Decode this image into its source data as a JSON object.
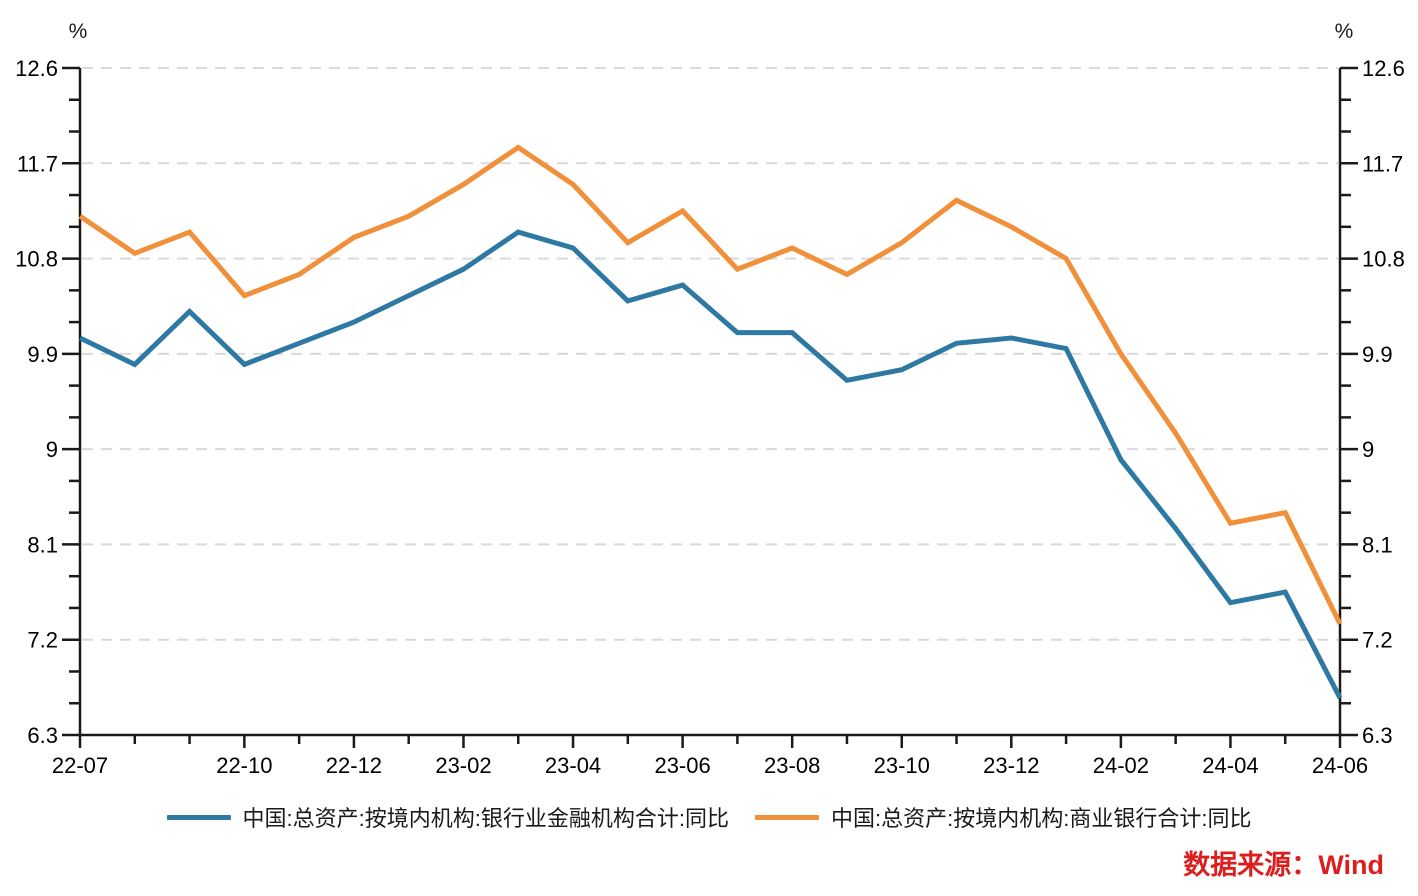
{
  "page": {
    "background": "#ffffff"
  },
  "chart_data": {
    "type": "line",
    "title": "",
    "y_axis_unit_left": "%",
    "y_axis_unit_right": "%",
    "ylim": [
      6.3,
      12.6
    ],
    "y_major_ticks": [
      6.3,
      7.2,
      8.1,
      9,
      9.9,
      10.8,
      11.7,
      12.6
    ],
    "y_minor_step": 0.3,
    "grid": "horizontal dashed gridlines at major ticks",
    "legend_position": "bottom-center",
    "axis_color": "#1a1a1a",
    "grid_color": "#d9d9d9",
    "x": [
      "22-07",
      "22-08",
      "22-09",
      "22-10",
      "22-11",
      "22-12",
      "23-01",
      "23-02",
      "23-03",
      "23-04",
      "23-05",
      "23-06",
      "23-07",
      "23-08",
      "23-09",
      "23-10",
      "23-11",
      "23-12",
      "24-01",
      "24-02",
      "24-03",
      "24-04",
      "24-05",
      "24-06"
    ],
    "x_tick_labels": [
      "22-07",
      "22-10",
      "22-12",
      "23-02",
      "23-04",
      "23-06",
      "23-08",
      "23-10",
      "23-12",
      "24-02",
      "24-04",
      "24-06"
    ],
    "series": [
      {
        "name": "中国:总资产:按境内机构:银行业金融机构合计:同比",
        "color": "#2E79A3",
        "values": [
          10.05,
          9.8,
          10.3,
          9.8,
          10.0,
          10.2,
          10.45,
          10.7,
          11.05,
          10.9,
          10.4,
          10.55,
          10.1,
          10.1,
          9.65,
          9.75,
          10.0,
          10.05,
          9.95,
          8.9,
          8.25,
          7.55,
          7.65,
          6.65
        ]
      },
      {
        "name": "中国:总资产:按境内机构:商业银行合计:同比",
        "color": "#F1903A",
        "values": [
          11.2,
          10.85,
          11.05,
          10.45,
          10.65,
          11.0,
          11.2,
          11.5,
          11.85,
          11.5,
          10.95,
          11.25,
          10.7,
          10.9,
          10.65,
          10.95,
          11.35,
          11.1,
          10.8,
          9.9,
          9.15,
          8.3,
          8.4,
          7.35
        ]
      }
    ],
    "source_note": "数据来源：Wind",
    "source_color": "#DC1E1E"
  }
}
